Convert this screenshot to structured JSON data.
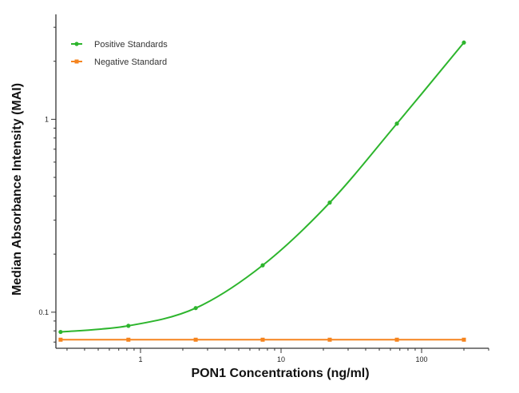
{
  "chart_data": {
    "type": "line",
    "title": "",
    "xlabel": "PON1 Concentrations (ng/ml)",
    "ylabel": "Median Absorbance Intensity (MAI)",
    "x_scale": "log",
    "y_scale": "log",
    "xlim": [
      0.25,
      300
    ],
    "ylim": [
      0.065,
      3.5
    ],
    "x_ticks": [
      {
        "value": 1,
        "label": "1"
      },
      {
        "value": 10,
        "label": "10"
      },
      {
        "value": 100,
        "label": "100"
      }
    ],
    "y_ticks": [
      {
        "value": 0.1,
        "label": "0.1"
      },
      {
        "value": 1,
        "label": "1"
      }
    ],
    "grid": false,
    "legend_position": "top-left",
    "series": [
      {
        "name": "Positive Standards",
        "color": "#2db52d",
        "points": [
          {
            "x": 0.27,
            "y": 0.079
          },
          {
            "x": 0.82,
            "y": 0.085
          },
          {
            "x": 2.47,
            "y": 0.105
          },
          {
            "x": 7.4,
            "y": 0.175
          },
          {
            "x": 22.2,
            "y": 0.37
          },
          {
            "x": 66.7,
            "y": 0.95
          },
          {
            "x": 200,
            "y": 2.5
          }
        ]
      },
      {
        "name": "Negative Standard",
        "color": "#f5841f",
        "points": [
          {
            "x": 0.27,
            "y": 0.072
          },
          {
            "x": 0.82,
            "y": 0.072
          },
          {
            "x": 2.47,
            "y": 0.072
          },
          {
            "x": 7.4,
            "y": 0.072
          },
          {
            "x": 22.2,
            "y": 0.072
          },
          {
            "x": 66.7,
            "y": 0.072
          },
          {
            "x": 200,
            "y": 0.072
          }
        ]
      }
    ]
  }
}
